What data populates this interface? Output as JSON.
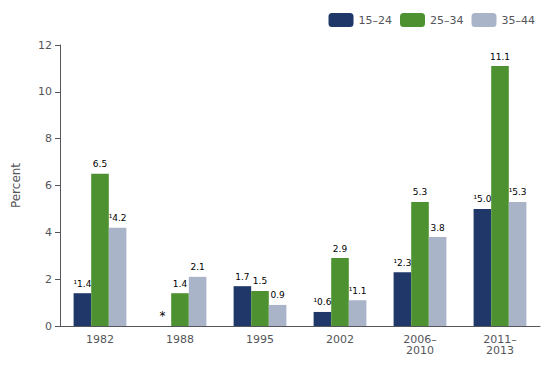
{
  "chart_data": {
    "type": "bar",
    "categories": [
      "1982",
      "1988",
      "1995",
      "2002",
      "2006–\n2010",
      "2011–\n2013"
    ],
    "series": [
      {
        "name": "15–24",
        "color": "#1f3769",
        "values": [
          1.4,
          null,
          1.7,
          0.6,
          2.3,
          5.0
        ],
        "value_labels": [
          "¹1.4",
          "*",
          "1.7",
          "¹0.6",
          "¹2.3",
          "¹5.0"
        ]
      },
      {
        "name": "25–34",
        "color": "#4e9130",
        "values": [
          6.5,
          1.4,
          1.5,
          2.9,
          5.3,
          11.1
        ],
        "value_labels": [
          "6.5",
          "1.4",
          "1.5",
          "2.9",
          "5.3",
          "11.1"
        ]
      },
      {
        "name": "35–44",
        "color": "#aab4c8",
        "values": [
          4.2,
          2.1,
          0.9,
          1.1,
          3.8,
          5.3
        ],
        "value_labels": [
          "¹4.2",
          "2.1",
          "0.9",
          "¹1.1",
          "3.8",
          "¹5.3"
        ]
      }
    ],
    "ylabel": "Percent",
    "ylim": [
      0,
      12
    ],
    "yticks": [
      0,
      2,
      4,
      6,
      8,
      10,
      12
    ],
    "data_labels": true,
    "grid": false,
    "legend": "upper right"
  }
}
